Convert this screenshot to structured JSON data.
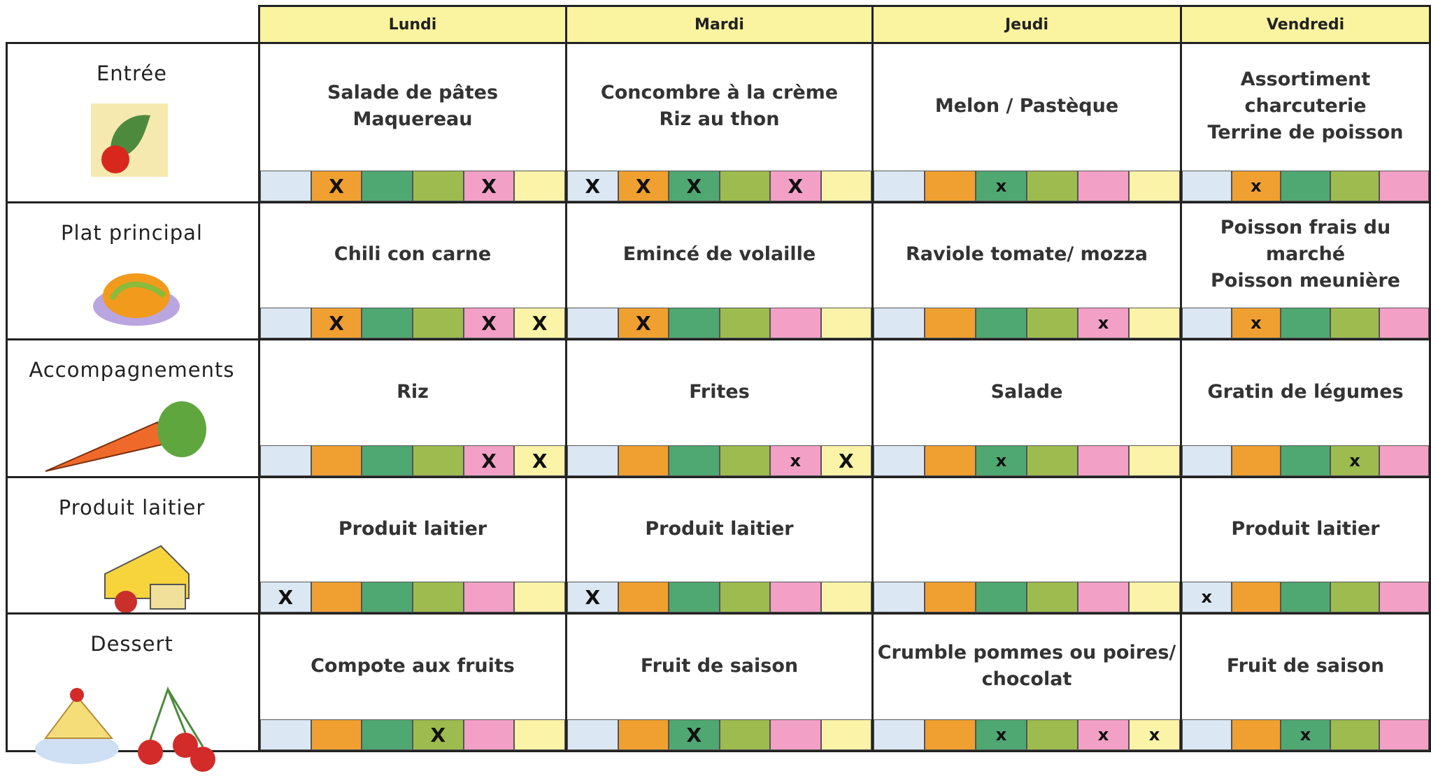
{
  "days": [
    "Lundi",
    "Mardi",
    "Jeudi",
    "Vendredi"
  ],
  "rows": [
    {
      "label": "Entrée",
      "cells": [
        {
          "lines": [
            "Salade de pâtes",
            "Maquereau"
          ],
          "marks": [
            null,
            "X",
            null,
            null,
            "X",
            null
          ]
        },
        {
          "lines": [
            "Concombre à la crème",
            "Riz au thon"
          ],
          "marks": [
            "X",
            "X",
            "X",
            null,
            "X",
            null
          ]
        },
        {
          "lines": [
            "Melon / Pastèque"
          ],
          "marks": [
            null,
            null,
            "x",
            null,
            null,
            null
          ]
        },
        {
          "lines": [
            "Assortiment charcuterie",
            "Terrine de poisson"
          ],
          "marks": [
            null,
            "x",
            null,
            null,
            null
          ]
        }
      ]
    },
    {
      "label": "Plat principal",
      "cells": [
        {
          "lines": [
            "Chili con carne"
          ],
          "marks": [
            null,
            "X",
            null,
            null,
            "X",
            "X"
          ]
        },
        {
          "lines": [
            "Emincé de volaille"
          ],
          "marks": [
            null,
            "X",
            null,
            null,
            null,
            null
          ]
        },
        {
          "lines": [
            "Raviole tomate/ mozza"
          ],
          "marks": [
            null,
            null,
            null,
            null,
            "x",
            null
          ]
        },
        {
          "lines": [
            "Poisson frais du marché",
            "Poisson meunière"
          ],
          "marks": [
            null,
            "x",
            null,
            null,
            null
          ]
        }
      ]
    },
    {
      "label": "Accompagnements",
      "cells": [
        {
          "lines": [
            "Riz"
          ],
          "marks": [
            null,
            null,
            null,
            null,
            "X",
            "X"
          ]
        },
        {
          "lines": [
            "Frites"
          ],
          "marks": [
            null,
            null,
            null,
            null,
            "x",
            "X"
          ]
        },
        {
          "lines": [
            "Salade"
          ],
          "marks": [
            null,
            null,
            "x",
            null,
            null,
            null
          ]
        },
        {
          "lines": [
            "Gratin de légumes"
          ],
          "marks": [
            null,
            null,
            null,
            "x",
            null
          ]
        }
      ]
    },
    {
      "label": "Produit laitier",
      "cells": [
        {
          "lines": [
            "Produit laitier"
          ],
          "marks": [
            "X",
            null,
            null,
            null,
            null,
            null
          ]
        },
        {
          "lines": [
            "Produit laitier"
          ],
          "marks": [
            "X",
            null,
            null,
            null,
            null,
            null
          ]
        },
        {
          "lines": [],
          "marks": [
            null,
            null,
            null,
            null,
            null,
            null
          ]
        },
        {
          "lines": [
            "Produit laitier"
          ],
          "marks": [
            "x",
            null,
            null,
            null,
            null
          ]
        }
      ]
    },
    {
      "label": "Dessert",
      "cells": [
        {
          "lines": [
            "Compote aux fruits"
          ],
          "marks": [
            null,
            null,
            null,
            "X",
            null,
            null
          ]
        },
        {
          "lines": [
            "Fruit de saison"
          ],
          "marks": [
            null,
            null,
            "X",
            null,
            null,
            null
          ]
        },
        {
          "lines": [
            "Crumble pommes ou poires/",
            "chocolat"
          ],
          "marks": [
            null,
            null,
            "x",
            null,
            "x",
            "x"
          ]
        },
        {
          "lines": [
            "Fruit de saison"
          ],
          "marks": [
            null,
            null,
            "x",
            null,
            null
          ]
        }
      ]
    }
  ]
}
